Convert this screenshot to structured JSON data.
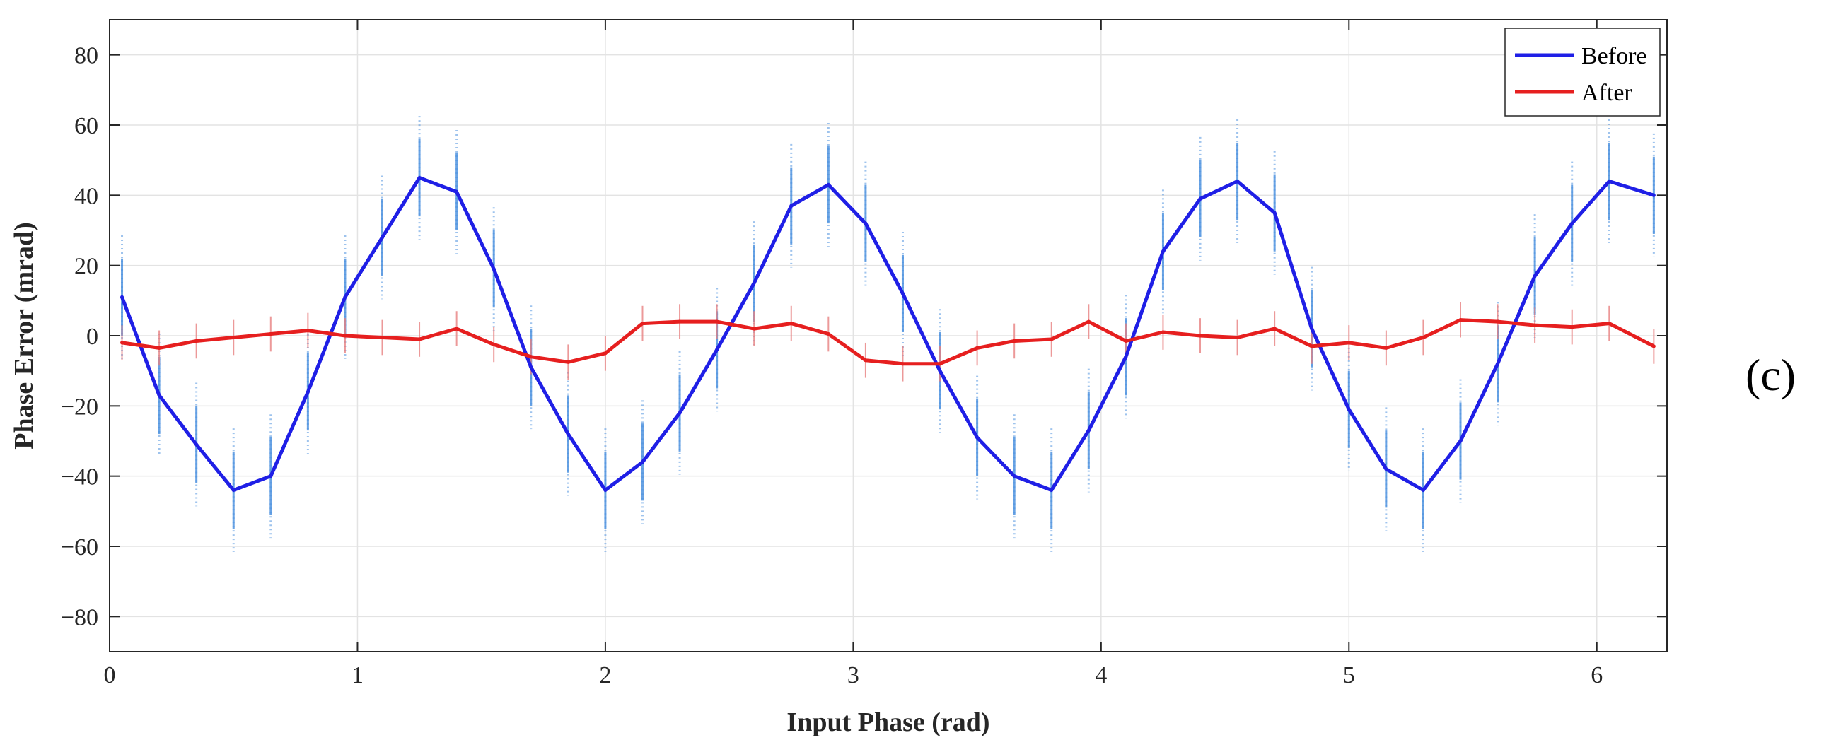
{
  "chart_data": {
    "type": "line",
    "xlabel": "Input Phase (rad)",
    "ylabel": "Phase Error (mrad)",
    "xlim": [
      0,
      6.2832
    ],
    "ylim": [
      -90,
      90
    ],
    "xticks": [
      0,
      1,
      2,
      3,
      4,
      5,
      6
    ],
    "xtick_labels": [
      "0",
      "1",
      "2",
      "3",
      "4",
      "5",
      "6"
    ],
    "yticks": [
      -80,
      -60,
      -40,
      -20,
      0,
      20,
      40,
      60,
      80
    ],
    "ytick_labels": [
      "−80",
      "−60",
      "−40",
      "−20",
      "0",
      "20",
      "40",
      "60",
      "80"
    ],
    "grid": true,
    "legend_position": "top-right",
    "panel_label": "(c)",
    "x": [
      0.05,
      0.2,
      0.35,
      0.5,
      0.65,
      0.8,
      0.95,
      1.1,
      1.25,
      1.4,
      1.55,
      1.7,
      1.85,
      2.0,
      2.15,
      2.3,
      2.45,
      2.6,
      2.75,
      2.9,
      3.05,
      3.2,
      3.35,
      3.5,
      3.65,
      3.8,
      3.95,
      4.1,
      4.25,
      4.4,
      4.55,
      4.7,
      4.85,
      5.0,
      5.15,
      5.3,
      5.45,
      5.6,
      5.75,
      5.9,
      6.05,
      6.23
    ],
    "series": [
      {
        "name": "Before",
        "color": "#1f1fe6",
        "values": [
          11,
          -17,
          -31,
          -44,
          -40,
          -16,
          11,
          28,
          45,
          41,
          19,
          -9,
          -28,
          -44,
          -36,
          -22,
          -4,
          15,
          37,
          43,
          32,
          12,
          -10,
          -29,
          -40,
          -44,
          -27,
          -6,
          24,
          39,
          44,
          35,
          2,
          -21,
          -38,
          -44,
          -30,
          -8,
          17,
          32,
          44,
          40
        ]
      },
      {
        "name": "After",
        "color": "#e61f1f",
        "values": [
          -2,
          -3.5,
          -1.5,
          -0.5,
          0.5,
          1.5,
          0,
          -0.5,
          -1,
          2,
          -2.5,
          -6,
          -7.5,
          -5,
          3.5,
          4,
          4,
          2,
          3.5,
          0.5,
          -7,
          -8,
          -8,
          -3.5,
          -1.5,
          -1,
          4,
          -1.5,
          1,
          0,
          -0.5,
          2,
          -3,
          -2,
          -3.5,
          -0.5,
          4.5,
          4,
          3,
          2.5,
          3.5,
          -3
        ]
      }
    ],
    "scatter_spread": {
      "series": "Before",
      "color": "#4f93e0",
      "description_values_range_mrad": [
        -11,
        11
      ]
    }
  }
}
